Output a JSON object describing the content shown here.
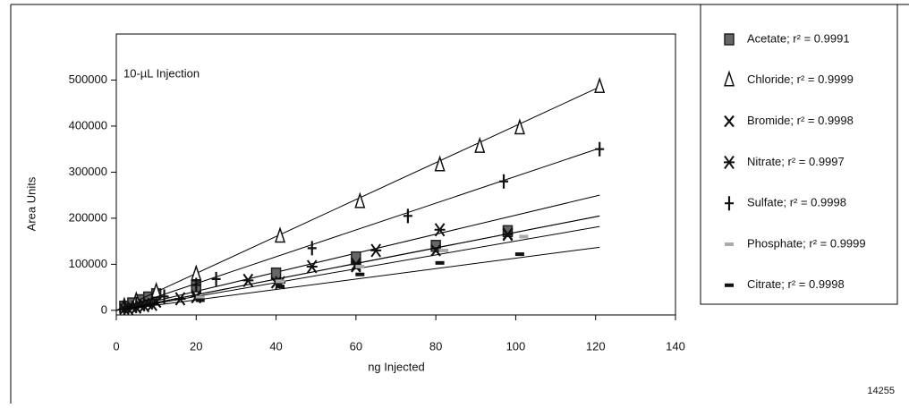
{
  "chart_data": {
    "type": "scatter",
    "annotation": "10-µL Injection",
    "figure_number": "14255",
    "x_label": "ng Injected",
    "y_label": "Area Units",
    "xlim": [
      0,
      140
    ],
    "xticks": [
      0,
      20,
      40,
      60,
      80,
      100,
      120,
      140
    ],
    "ylim": [
      -10000,
      600000
    ],
    "yticks": [
      0,
      100000,
      200000,
      300000,
      400000,
      500000
    ],
    "grid": false,
    "legend_position": "right",
    "series": [
      {
        "name": "Acetate; r² = 0.9991",
        "marker": "square",
        "color": "#666666",
        "x": [
          2,
          4,
          6,
          8,
          10,
          20,
          40,
          60,
          80,
          98
        ],
        "values": [
          8000,
          15000,
          22000,
          28000,
          35000,
          52000,
          80000,
          115000,
          140000,
          172000
        ],
        "trend": {
          "x": [
            0,
            121
          ],
          "values": [
            0,
            250000
          ]
        }
      },
      {
        "name": "Chloride; r² = 0.9999",
        "marker": "triangle",
        "color": "#111111",
        "x": [
          2,
          5,
          10,
          20,
          41,
          61,
          81,
          91,
          101,
          121
        ],
        "values": [
          8000,
          20000,
          40000,
          78000,
          160000,
          235000,
          315000,
          355000,
          395000,
          485000
        ],
        "trend": {
          "x": [
            0,
            121
          ],
          "values": [
            0,
            485000
          ]
        }
      },
      {
        "name": "Bromide; r² = 0.9998",
        "marker": "x",
        "color": "#111111",
        "x": [
          2,
          4,
          6,
          8,
          10,
          20,
          40,
          60,
          80,
          98
        ],
        "values": [
          3000,
          6000,
          10000,
          14000,
          18000,
          28000,
          60000,
          95000,
          130000,
          165000
        ],
        "trend": {
          "x": [
            0,
            121
          ],
          "values": [
            0,
            205000
          ]
        }
      },
      {
        "name": "Nitrate; r² = 0.9997",
        "marker": "asterisk",
        "color": "#111111",
        "x": [
          3,
          5,
          7,
          9,
          16,
          20,
          33,
          41,
          49,
          60,
          65,
          81,
          98
        ],
        "values": [
          4000,
          7000,
          10000,
          13000,
          25000,
          30000,
          65000,
          60000,
          95000,
          100000,
          130000,
          175000,
          165000
        ],
        "trend": {
          "x": [
            0,
            121
          ],
          "values": [
            0,
            205000
          ]
        }
      },
      {
        "name": "Sulfate; r² = 0.9998",
        "marker": "plus",
        "color": "#111111",
        "x": [
          2,
          5,
          12,
          20,
          25,
          49,
          73,
          97,
          121
        ],
        "values": [
          5000,
          14000,
          30000,
          55000,
          68000,
          135000,
          205000,
          280000,
          350000
        ],
        "trend": {
          "x": [
            0,
            121
          ],
          "values": [
            0,
            352000
          ]
        }
      },
      {
        "name": "Phosphate; r² = 0.9999",
        "marker": "dash",
        "color": "#aaaaaa",
        "x": [
          21,
          41,
          61,
          82,
          102
        ],
        "values": [
          28000,
          63000,
          95000,
          130000,
          160000
        ],
        "trend": {
          "x": [
            0,
            121
          ],
          "values": [
            0,
            182000
          ]
        }
      },
      {
        "name": "Citrate; r² = 0.9998",
        "marker": "dash",
        "color": "#111111",
        "x": [
          21,
          41,
          61,
          81,
          101
        ],
        "values": [
          22000,
          52000,
          78000,
          103000,
          122000
        ],
        "trend": {
          "x": [
            0,
            121
          ],
          "values": [
            0,
            137000
          ]
        }
      }
    ]
  }
}
